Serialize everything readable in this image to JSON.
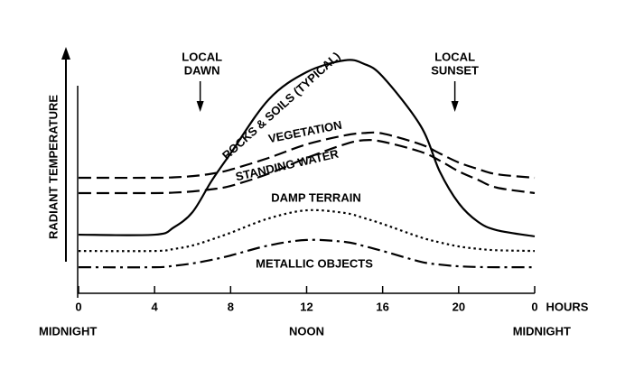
{
  "chart_data": {
    "type": "line",
    "y_label": "RADIANT TEMPERATURE",
    "x_label": "HOURS",
    "x": [
      0,
      4,
      5,
      6,
      7,
      8,
      10,
      12,
      14,
      15,
      16,
      18,
      19,
      20,
      21,
      22,
      24
    ],
    "xlim": [
      0,
      24
    ],
    "xticks": [
      0,
      4,
      8,
      12,
      16,
      20,
      {
        "value": 24,
        "label": "0"
      }
    ],
    "ylim": [
      0,
      100
    ],
    "period_labels": [
      "MIDNIGHT",
      "NOON",
      "MIDNIGHT"
    ],
    "events": [
      {
        "lines": [
          "LOCAL",
          "DAWN"
        ],
        "x": 6.4
      },
      {
        "lines": [
          "LOCAL",
          "SUNSET"
        ],
        "x": 19.8
      }
    ],
    "series": [
      {
        "name": "ROCKS & SOILS (TYPICAL)",
        "color": "#000000",
        "style": "solid",
        "values": [
          24.5,
          24.5,
          27.5,
          34,
          47,
          58.5,
          81,
          92.5,
          97.4,
          96,
          90.6,
          70,
          51,
          37.7,
          30,
          26.4,
          23.8
        ]
      },
      {
        "name": "VEGETATION",
        "color": "#000000",
        "style": "dashed",
        "values": [
          48.3,
          48.3,
          48.5,
          49,
          50,
          51.7,
          56.6,
          62.3,
          66,
          67,
          66.8,
          62.3,
          58.5,
          54.7,
          52,
          49.8,
          48.3
        ]
      },
      {
        "name": "STANDING WATER",
        "color": "#000000",
        "style": "dashed",
        "values": [
          41.9,
          41.9,
          42.1,
          42.6,
          43.5,
          44.9,
          50,
          56.6,
          62.3,
          64,
          63.4,
          59.2,
          55.5,
          51,
          47.5,
          44.2,
          41.9
        ]
      },
      {
        "name": "DAMP TERRAIN",
        "color": "#000000",
        "style": "dotted",
        "values": [
          17.7,
          17.7,
          18.5,
          20,
          22.5,
          25.3,
          31.3,
          34.7,
          33.6,
          31.5,
          29,
          23.4,
          21.3,
          19.6,
          18.6,
          18,
          17.7
        ]
      },
      {
        "name": "METALLIC OBJECTS",
        "color": "#000000",
        "style": "dashdot",
        "values": [
          10.9,
          10.9,
          11.5,
          12.5,
          14,
          15.8,
          20,
          22.3,
          21.5,
          19.8,
          17.7,
          13.2,
          12,
          11.3,
          11,
          10.9,
          10.9
        ]
      }
    ]
  }
}
